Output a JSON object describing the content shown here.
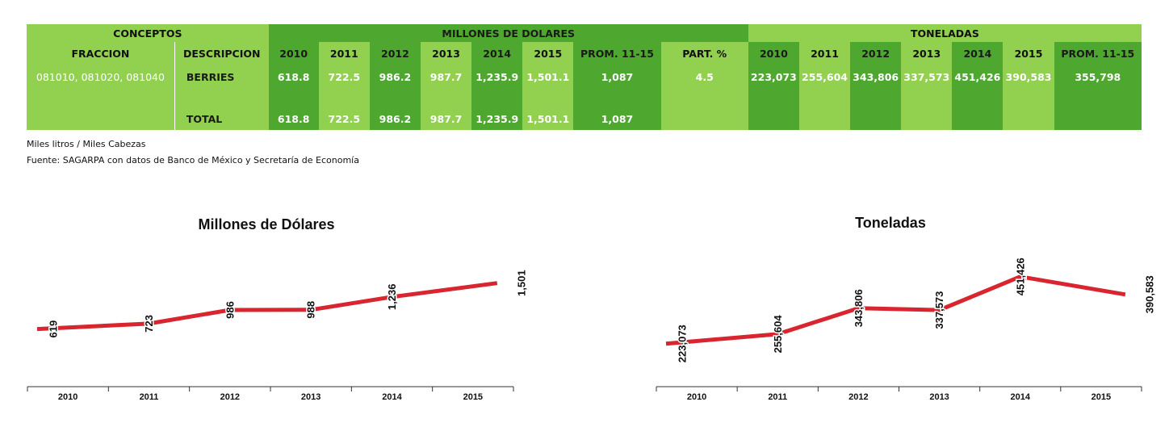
{
  "table": {
    "groups": {
      "conceptos": "CONCEPTOS",
      "usd": "MILLONES DE DOLARES",
      "ton": "TONELADAS"
    },
    "headers": {
      "fraccion": "FRACCION",
      "descripcion": "DESCRIPCION",
      "usd_years": [
        "2010",
        "2011",
        "2012",
        "2013",
        "2014",
        "2015"
      ],
      "usd_prom": "PROM. 11-15",
      "part": "PART. %",
      "ton_years": [
        "2010",
        "2011",
        "2012",
        "2013",
        "2014",
        "2015"
      ],
      "ton_prom": "PROM. 11-15"
    },
    "row": {
      "fraccion": "081010, 081020, 081040",
      "descripcion": "BERRIES",
      "usd": [
        "618.8",
        "722.5",
        "986.2",
        "987.7",
        "1,235.9",
        "1,501.1"
      ],
      "usd_prom": "1,087",
      "part": "4.5",
      "ton": [
        "223,073",
        "255,604",
        "343,806",
        "337,573",
        "451,426",
        "390,583"
      ],
      "ton_prom": "355,798"
    },
    "total": {
      "label": "TOTAL",
      "usd": [
        "618.8",
        "722.5",
        "986.2",
        "987.7",
        "1,235.9",
        "1,501.1"
      ],
      "usd_prom": "1,087"
    }
  },
  "notes": {
    "units": "Miles litros / Miles Cabezas",
    "source": "Fuente: SAGARPA con datos de Banco de México y Secretaría de Economía"
  },
  "colors": {
    "line": "#d9252f",
    "light_green": "#92d050",
    "dark_green": "#4ea72e"
  },
  "chart_data": [
    {
      "type": "line",
      "title": "Millones de Dólares",
      "categories": [
        "2010",
        "2011",
        "2012",
        "2013",
        "2014",
        "2015"
      ],
      "values": [
        619,
        723,
        986,
        988,
        1236,
        1501
      ],
      "labels": [
        "619",
        "723",
        "986",
        "988",
        "1,236",
        "1,501"
      ],
      "ylim": [
        -1200,
        1900
      ],
      "grid": false
    },
    {
      "type": "line",
      "title": "Toneladas",
      "categories": [
        "2010",
        "2011",
        "2012",
        "2013",
        "2014",
        "2015"
      ],
      "values": [
        223073,
        255604,
        343806,
        337573,
        451426,
        390583
      ],
      "labels": [
        "223,073",
        "255,604",
        "343,806",
        "337,573",
        "451,426",
        "390,583"
      ],
      "ylim": [
        -50000,
        500000
      ],
      "grid": false
    }
  ]
}
